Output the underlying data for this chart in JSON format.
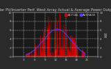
{
  "title": "Solar PV/Inverter Perf. West Array Actual & Average Power Output",
  "title_fontsize": 3.8,
  "bg_color": "#2a2a2a",
  "plot_bg_color": "#1a1a1a",
  "fill_color": "#cc0000",
  "avg_line_color": "#4444ff",
  "legend_actual": "ACTUAL",
  "legend_average": "AVERAGE",
  "legend_fontsize": 3.0,
  "ylabel_right": "kW",
  "num_points": 288,
  "peak_kw": 8.0,
  "ylim_max": 10.0,
  "grid_color": "#ffffff",
  "tick_fontsize": 3.0,
  "tick_color": "#cccccc",
  "title_color": "#cccccc",
  "spine_color": "#888888"
}
